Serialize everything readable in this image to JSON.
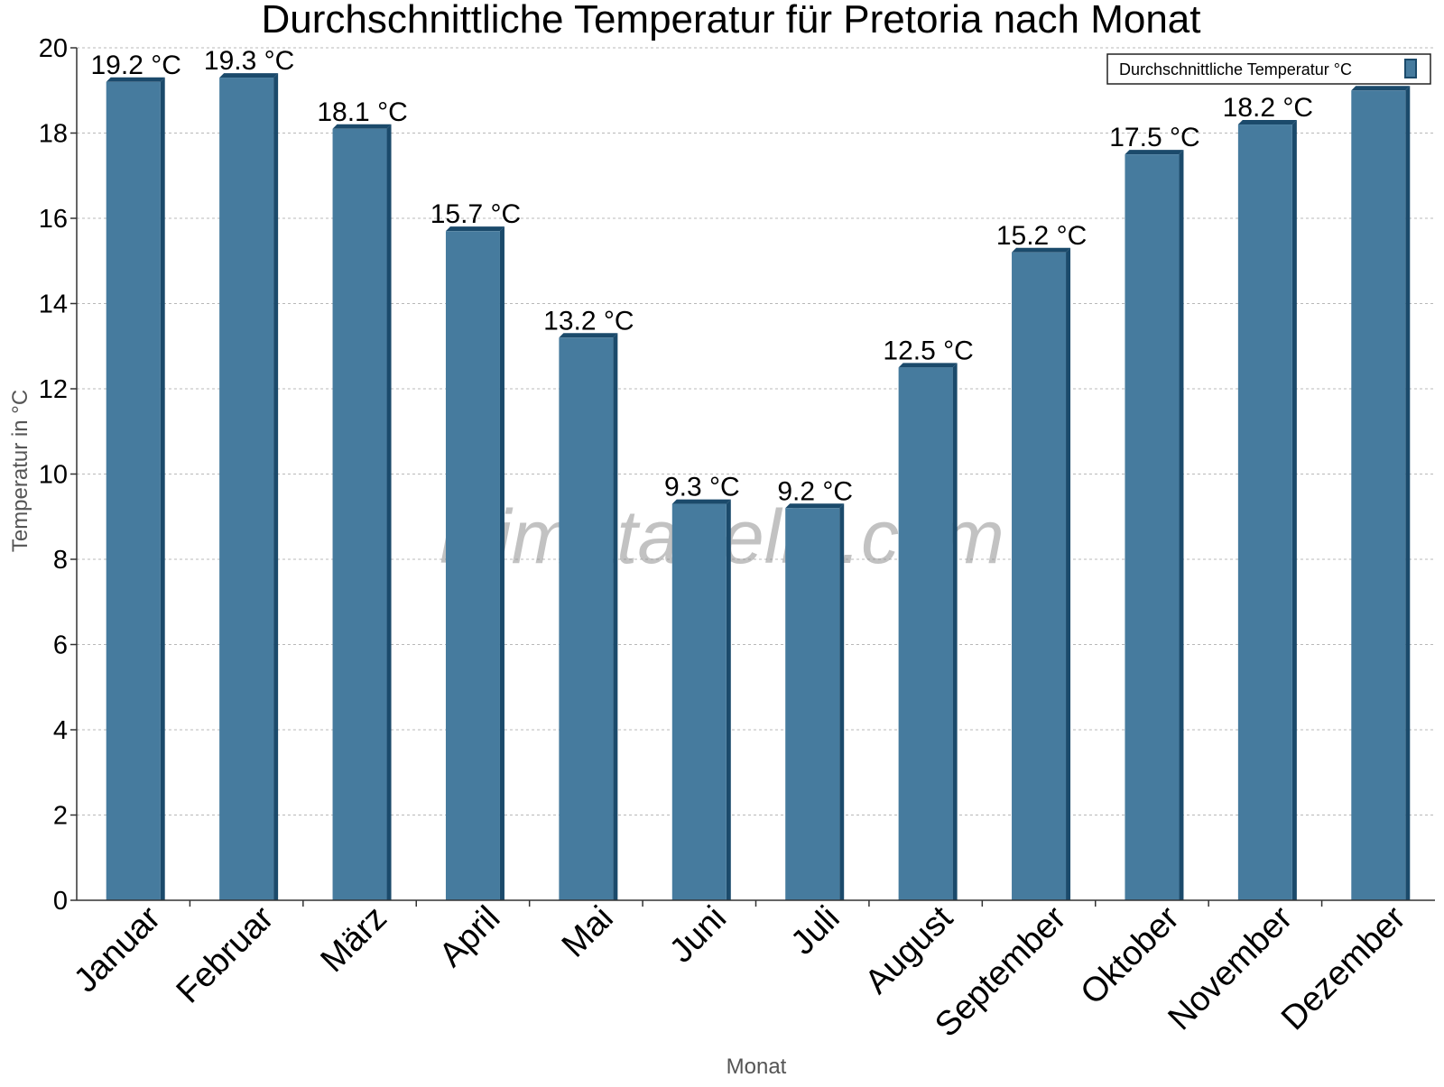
{
  "chart_data": {
    "type": "bar",
    "title": "Durchschnittliche Temperatur für Pretoria nach Monat",
    "xlabel": "Monat",
    "ylabel": "Temperatur in °C",
    "ylim": [
      0,
      20
    ],
    "yticks": [
      0,
      2,
      4,
      6,
      8,
      10,
      12,
      14,
      16,
      18,
      20
    ],
    "grid": true,
    "legend_position": "top-right",
    "categories": [
      "Januar",
      "Februar",
      "März",
      "April",
      "Mai",
      "Juni",
      "Juli",
      "August",
      "September",
      "Oktober",
      "November",
      "Dezember"
    ],
    "series": [
      {
        "name": "Durchschnittliche Temperatur °C",
        "values": [
          19.2,
          19.3,
          18.1,
          15.7,
          13.2,
          9.3,
          9.2,
          12.5,
          15.2,
          17.5,
          18.2,
          19.0
        ],
        "labels": [
          "19.2 °C",
          "19.3 °C",
          "18.1 °C",
          "15.7 °C",
          "13.2 °C",
          "9.3 °C",
          "9.2 °C",
          "12.5 °C",
          "15.2 °C",
          "17.5 °C",
          "18.2 °C",
          ""
        ]
      }
    ],
    "watermark": "klimatabelle.com",
    "colors": {
      "bar": "#467b9e",
      "bar_dark": "#1b4a6b",
      "grid": "#b8b8b8",
      "axis": "#333333"
    }
  }
}
